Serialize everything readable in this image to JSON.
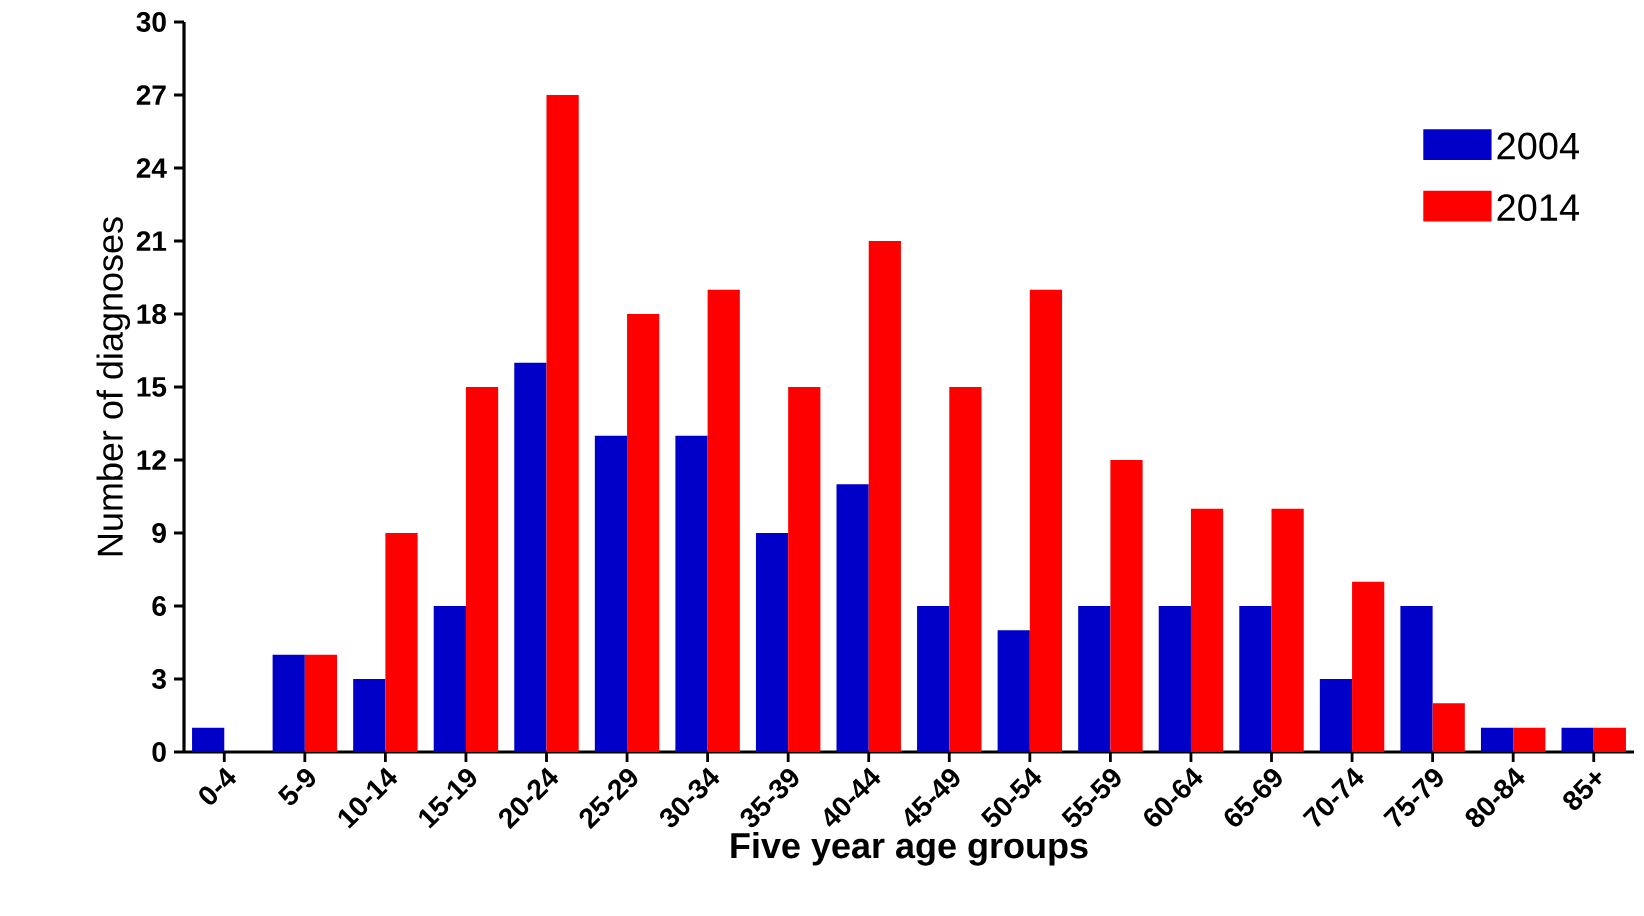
{
  "chart_data": {
    "type": "bar",
    "xlabel": "Five year age groups",
    "ylabel": "Number of diagnoses",
    "categories": [
      "0-4",
      "5-9",
      "10-14",
      "15-19",
      "20-24",
      "25-29",
      "30-34",
      "35-39",
      "40-44",
      "45-49",
      "50-54",
      "55-59",
      "60-64",
      "65-69",
      "70-74",
      "75-79",
      "80-84",
      "85+"
    ],
    "series": [
      {
        "name": "2004",
        "color": "#0000c8",
        "values": [
          1,
          4,
          3,
          6,
          16,
          13,
          13,
          9,
          11,
          6,
          5,
          6,
          6,
          6,
          3,
          6,
          1,
          1
        ]
      },
      {
        "name": "2014",
        "color": "#ff0000",
        "values": [
          0,
          4,
          9,
          15,
          27,
          18,
          19,
          15,
          21,
          15,
          19,
          12,
          10,
          10,
          7,
          2,
          1,
          1
        ]
      }
    ],
    "ylim": [
      0,
      30
    ],
    "yticks": [
      0,
      3,
      6,
      9,
      12,
      15,
      18,
      21,
      24,
      27,
      30
    ],
    "legend": "top right"
  }
}
